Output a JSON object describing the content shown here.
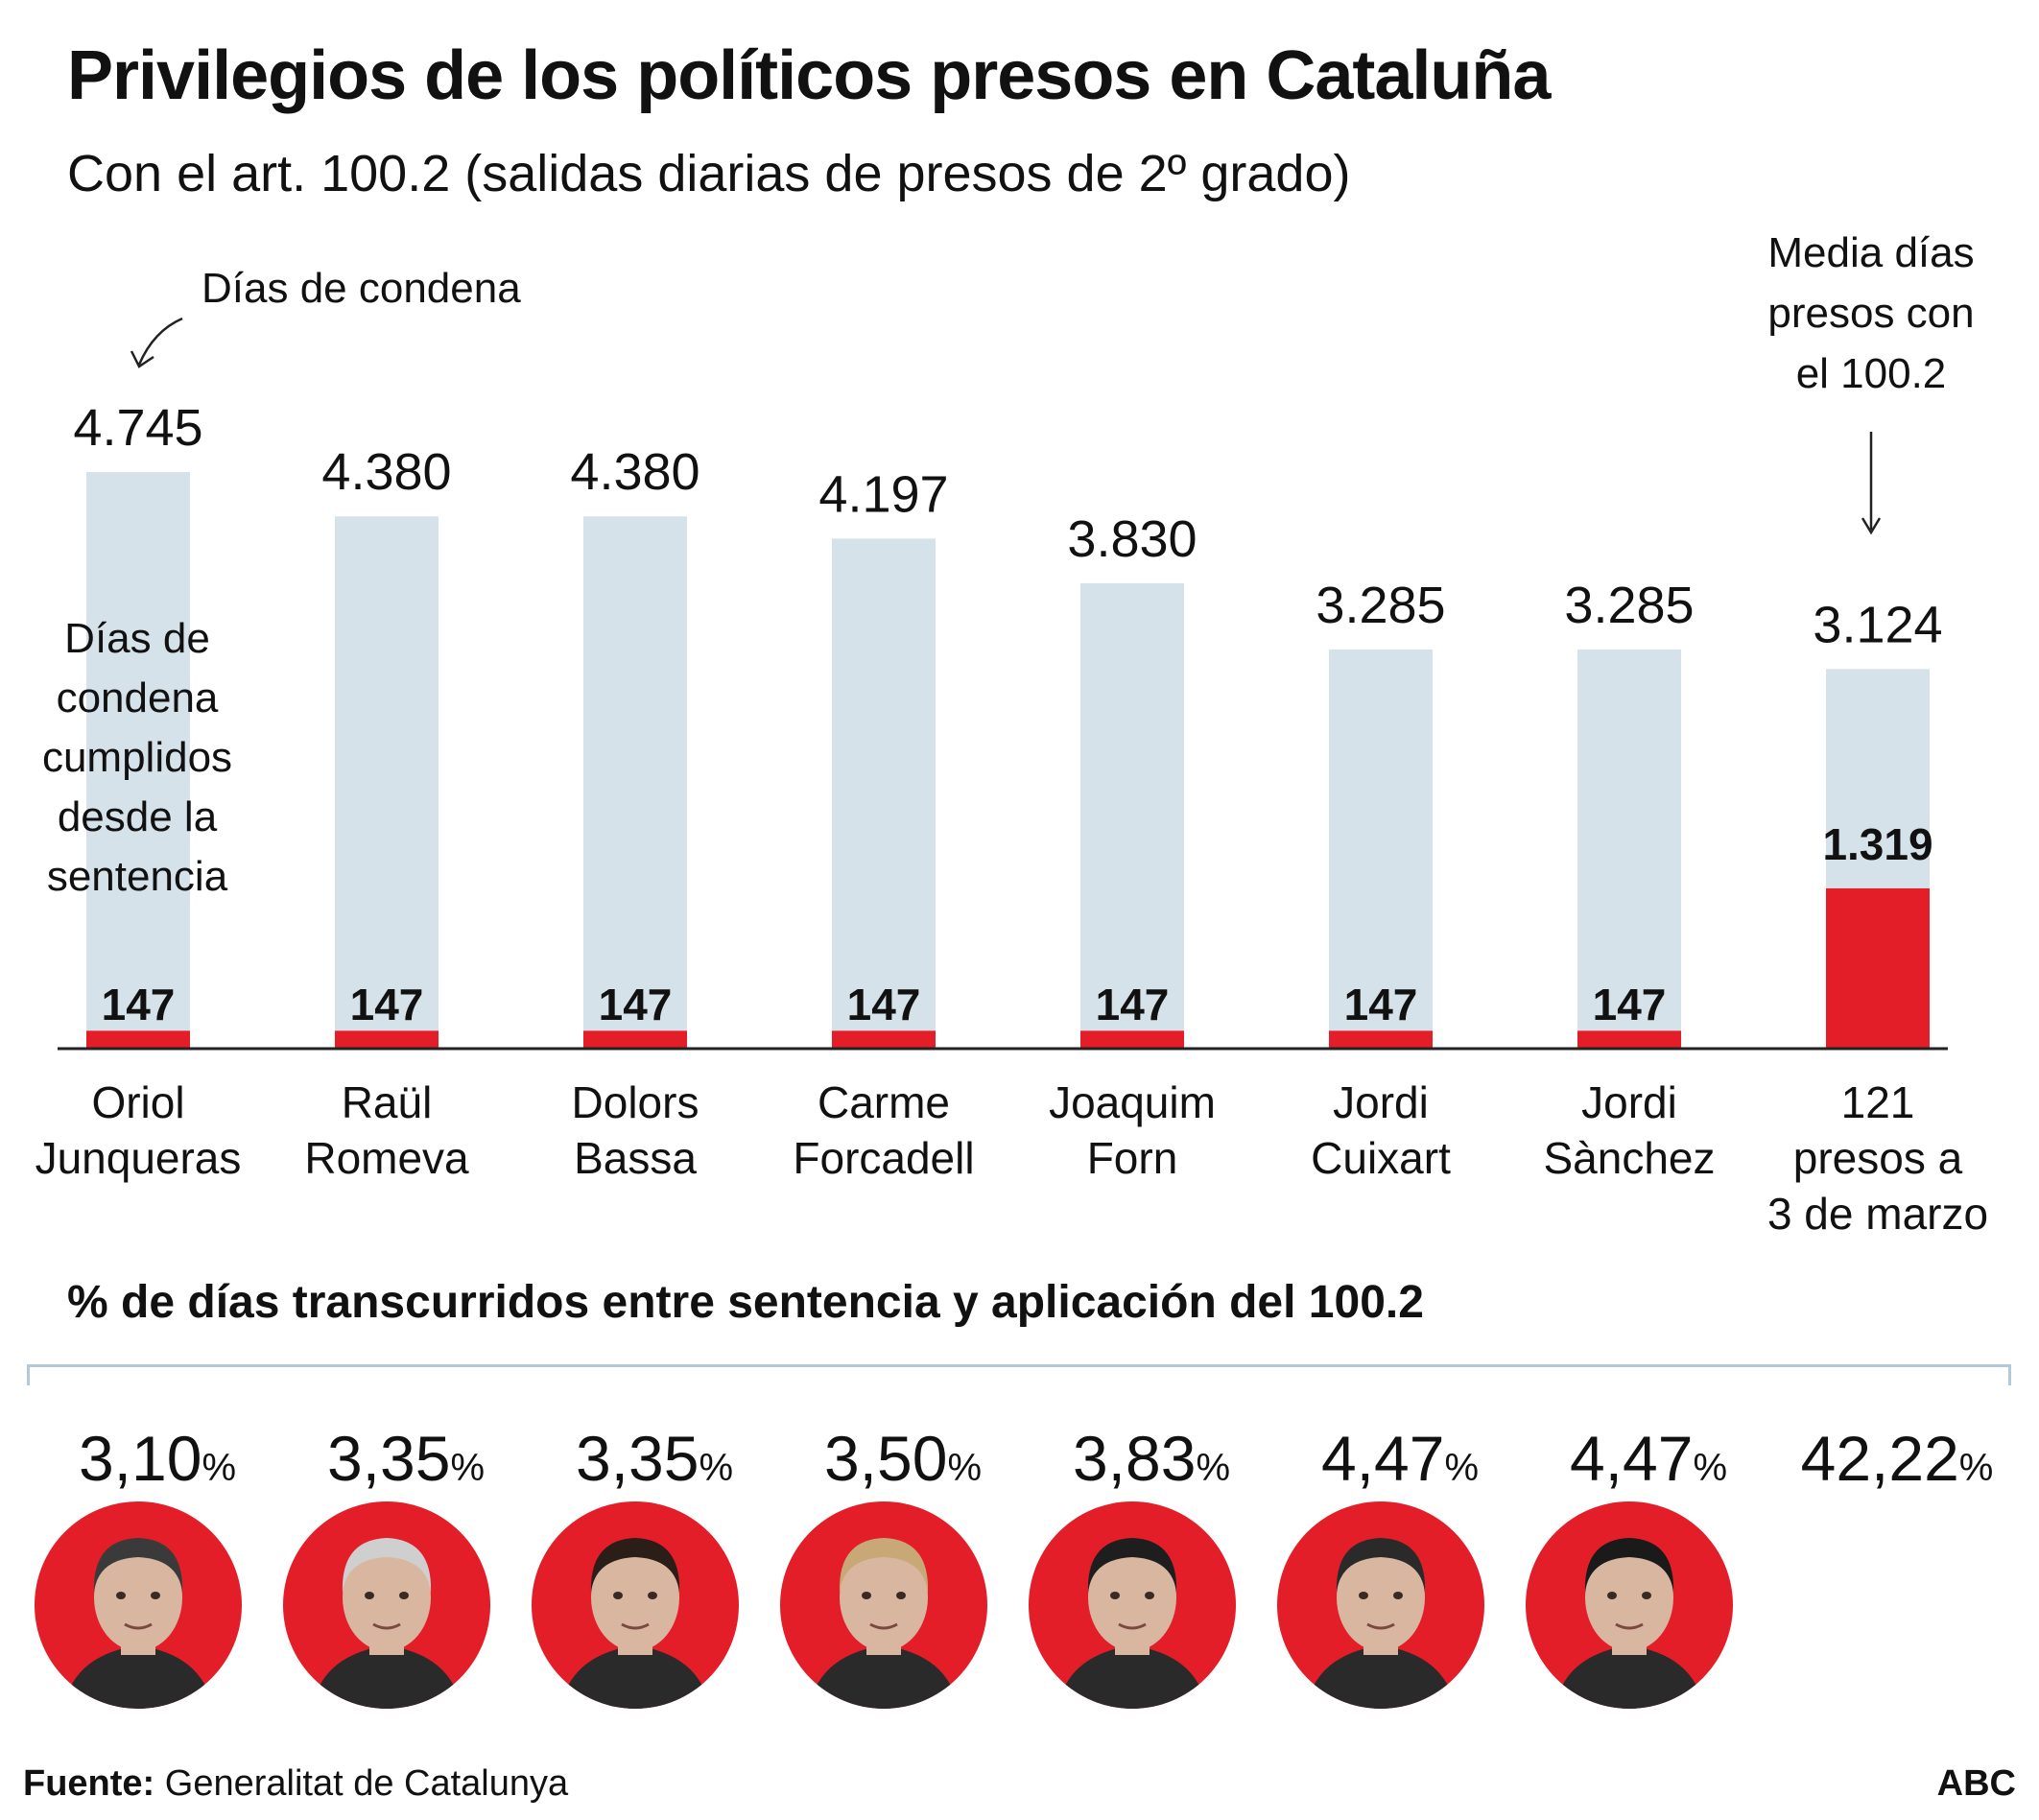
{
  "title": "Privilegios de los políticos presos en Cataluña",
  "subtitle": "Con el art. 100.2 (salidas diarias de presos de 2º grado)",
  "annotations": {
    "sentence_days_label": "Días de condena",
    "served_days_label": [
      "Días de",
      "condena",
      "cumplidos",
      "desde la",
      "sentencia"
    ],
    "average_label": [
      "Media días",
      "presos con",
      "el 100.2"
    ]
  },
  "chart_data": {
    "type": "bar",
    "stacked_overlay": true,
    "categories": [
      [
        "Oriol",
        "Junqueras"
      ],
      [
        "Raül",
        "Romeva"
      ],
      [
        "Dolors",
        "Bassa"
      ],
      [
        "Carme",
        "Forcadell"
      ],
      [
        "Joaquim",
        "Forn"
      ],
      [
        "Jordi",
        "Cuixart"
      ],
      [
        "Jordi",
        "Sànchez"
      ],
      [
        "121",
        "presos a",
        "3 de marzo"
      ]
    ],
    "series": [
      {
        "name": "Días de condena",
        "color": "#d6e2ea",
        "values": [
          4745,
          4380,
          4380,
          4197,
          3830,
          3285,
          3285,
          3124
        ],
        "labels": [
          "4.745",
          "4.380",
          "4.380",
          "4.197",
          "3.830",
          "3.285",
          "3.285",
          "3.124"
        ]
      },
      {
        "name": "Días de condena cumplidos desde la sentencia",
        "color": "#e31e28",
        "values": [
          147,
          147,
          147,
          147,
          147,
          147,
          147,
          1319
        ],
        "labels": [
          "147",
          "147",
          "147",
          "147",
          "147",
          "147",
          "147",
          "1.319"
        ]
      }
    ],
    "ylim": [
      0,
      5000
    ],
    "xlabel": "",
    "ylabel": "",
    "grid": false
  },
  "percent_section": {
    "title": "% de días transcurridos entre sentencia y aplicación del 100.2",
    "percent_sign": "%",
    "values": [
      "3,10",
      "3,35",
      "3,35",
      "3,50",
      "3,83",
      "4,47",
      "4,47",
      "42,22"
    ]
  },
  "portraits": [
    "oriol-junqueras",
    "raul-romeva",
    "dolors-bassa",
    "carme-forcadell",
    "joaquim-forn",
    "jordi-cuixart",
    "jordi-sanchez"
  ],
  "footer": {
    "source_label": "Fuente:",
    "source_text": " Generalitat de Catalunya",
    "brand": "ABC"
  },
  "colors": {
    "bar_background": "#d6e2ea",
    "bar_highlight": "#e31e28",
    "bracket": "#b4c9d8",
    "text": "#111111"
  }
}
